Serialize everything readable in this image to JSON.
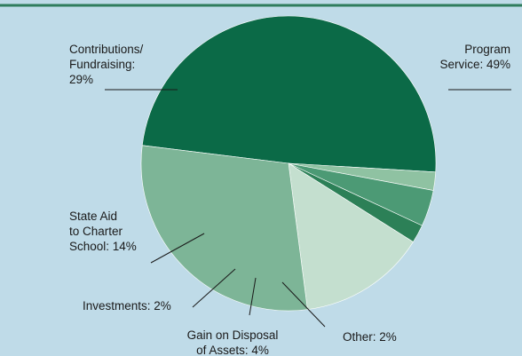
{
  "chart_data": {
    "type": "pie",
    "title": "",
    "slices": [
      {
        "label_lines": [
          "Program",
          "Service: 49%"
        ],
        "value": 49,
        "color": "#0b6a47"
      },
      {
        "label_lines": [
          "Other: 2%"
        ],
        "value": 2,
        "color": "#8fc2a2"
      },
      {
        "label_lines": [
          "Gain on Disposal",
          "of Assets: 4%"
        ],
        "value": 4,
        "color": "#4c9a75"
      },
      {
        "label_lines": [
          "Investments: 2%"
        ],
        "value": 2,
        "color": "#2c8057"
      },
      {
        "label_lines": [
          "State Aid",
          "to Charter",
          "School: 14%"
        ],
        "value": 14,
        "color": "#c4dfcf"
      },
      {
        "label_lines": [
          "Contributions/",
          "Fundraising:",
          "29%"
        ],
        "value": 29,
        "color": "#7db597"
      }
    ],
    "colors": {
      "background": "#bfdbe8",
      "header_rule": "#2f7d5d"
    }
  }
}
